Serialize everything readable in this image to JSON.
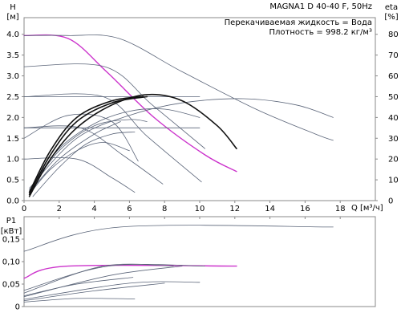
{
  "chart_data": [
    {
      "type": "line",
      "title": "MAGNA1 D 40-40 F, 50Hz",
      "info_lines": [
        "Перекачиваемая жидкость = Вода",
        "Плотность = 998.2 кг/м³"
      ],
      "ylabel_left_name": "H",
      "ylabel_left_unit": "[м]",
      "ylabel_right_name": "eta",
      "ylabel_right_unit": "[%]",
      "xlabel_name": "Q",
      "xlabel_unit": "[м³/ч]",
      "xlim": [
        0,
        20
      ],
      "ylim_left": [
        0,
        4.4
      ],
      "ylim_right": [
        0,
        88
      ],
      "x_ticks": [
        "0",
        "2",
        "4",
        "6",
        "8",
        "10",
        "12",
        "14",
        "16",
        "18"
      ],
      "y_left_ticks": [
        "0.0",
        "0.5",
        "1.0",
        "1.5",
        "2.0",
        "2.5",
        "3.0",
        "3.5",
        "4.0"
      ],
      "y_right_ticks": [
        "0",
        "10",
        "20",
        "30",
        "40",
        "50",
        "60",
        "70",
        "80"
      ],
      "grid": false,
      "series": [
        {
          "group": "head",
          "color": "#cc33cc",
          "emphasis": "selected",
          "x": [
            0,
            2.5,
            4.7,
            7.4,
            10.3,
            12.1
          ],
          "y": [
            3.97,
            3.9,
            3.1,
            2.0,
            1.1,
            0.7
          ]
        },
        {
          "group": "head",
          "color": "#5a6478",
          "x": [
            0,
            2.5,
            5.4,
            9.0,
            13.2,
            16.6,
            17.6
          ],
          "y": [
            3.97,
            3.97,
            3.9,
            3.1,
            2.2,
            1.6,
            1.45
          ]
        },
        {
          "group": "head",
          "color": "#5a6478",
          "x": [
            0,
            4.6,
            7.3,
            10.3
          ],
          "y": [
            3.22,
            3.22,
            2.3,
            1.25
          ]
        },
        {
          "group": "head",
          "color": "#5a6478",
          "x": [
            0,
            4.5,
            7.0,
            10.1
          ],
          "y": [
            2.5,
            2.5,
            1.55,
            0.45
          ]
        },
        {
          "group": "head",
          "color": "#5a6478",
          "x": [
            0,
            3.2,
            5.6,
            7.9
          ],
          "y": [
            1.75,
            1.75,
            1.1,
            0.4
          ]
        },
        {
          "group": "head",
          "color": "#5a6478",
          "x": [
            0,
            3.0,
            5.0,
            6.3
          ],
          "y": [
            1.0,
            1.0,
            0.55,
            0.2
          ]
        },
        {
          "group": "head",
          "color": "#5a6478",
          "x": [
            0,
            2.5,
            5.0,
            6.5
          ],
          "y": [
            1.5,
            2.05,
            1.9,
            0.95
          ]
        },
        {
          "group": "head",
          "color": "#5a6478",
          "x": [
            0,
            6.0,
            10.0
          ],
          "y": [
            1.75,
            1.75,
            1.75
          ]
        },
        {
          "group": "head",
          "color": "#5a6478",
          "x": [
            0,
            3.0,
            8.0,
            10.0
          ],
          "y": [
            2.5,
            2.5,
            2.5,
            2.5
          ]
        },
        {
          "group": "eta",
          "color": "#5a6478",
          "x": [
            0.3,
            3.0,
            6.0,
            9.0,
            12.5,
            15.5,
            17.6
          ],
          "y": [
            6,
            30,
            41,
            47,
            49,
            46,
            40
          ]
        },
        {
          "group": "eta",
          "color": "#5a6478",
          "x": [
            0.3,
            2.0,
            4.0,
            6.0,
            8.0,
            10.0
          ],
          "y": [
            5,
            25,
            37,
            43,
            44,
            40
          ]
        },
        {
          "group": "eta",
          "color": "#5a6478",
          "x": [
            0.3,
            2.0,
            4.0,
            6.0,
            7.0
          ],
          "y": [
            5,
            24,
            36,
            39,
            38
          ]
        },
        {
          "group": "eta",
          "color": "#5a6478",
          "x": [
            0.5,
            2.0,
            3.5,
            5.0,
            6.3
          ],
          "y": [
            2,
            16,
            27,
            32,
            33
          ]
        },
        {
          "group": "eta",
          "color": "#5a6478",
          "x": [
            0.3,
            2.0,
            4.0,
            5.5
          ],
          "y": [
            4,
            20,
            32,
            38
          ]
        },
        {
          "group": "eta",
          "color": "#5a6478",
          "x": [
            0.3,
            1.5,
            3.0,
            4.5,
            6.0
          ],
          "y": [
            3,
            15,
            24,
            28,
            24
          ]
        },
        {
          "group": "eta",
          "color": "#111111",
          "emphasis": "bold",
          "x": [
            0.3,
            1.5,
            3.0,
            5.0,
            7.0,
            9.0,
            11.0,
            12.1
          ],
          "y": [
            2,
            20,
            35,
            46,
            51,
            48,
            36,
            25
          ]
        },
        {
          "group": "eta",
          "color": "#111111",
          "emphasis": "bold",
          "x": [
            0.3,
            1.5,
            3.0,
            5.0,
            7.0
          ],
          "y": [
            3,
            22,
            38,
            47,
            50
          ]
        },
        {
          "group": "eta",
          "color": "#111111",
          "emphasis": "bold",
          "x": [
            0.3,
            1.5,
            3.0,
            5.0,
            6.8
          ],
          "y": [
            4,
            24,
            40,
            48,
            50
          ]
        }
      ]
    },
    {
      "type": "line",
      "ylabel_name": "P1",
      "ylabel_unit": "[кВт]",
      "xlim": [
        0,
        20
      ],
      "ylim": [
        0,
        0.2
      ],
      "y_ticks": [
        "0",
        "0,05",
        "0,10",
        "0,15"
      ],
      "grid": false,
      "series": [
        {
          "color": "#cc33cc",
          "emphasis": "selected",
          "x": [
            0,
            2.5,
            12.1
          ],
          "y": [
            0.063,
            0.09,
            0.09
          ]
        },
        {
          "color": "#5a6478",
          "x": [
            0,
            5.5,
            17.6
          ],
          "y": [
            0.123,
            0.177,
            0.177
          ]
        },
        {
          "color": "#5a6478",
          "x": [
            0,
            4.8,
            10.3
          ],
          "y": [
            0.036,
            0.09,
            0.09
          ]
        },
        {
          "color": "#5a6478",
          "x": [
            0,
            4.5,
            8.5
          ],
          "y": [
            0.03,
            0.09,
            0.09
          ]
        },
        {
          "color": "#5a6478",
          "x": [
            0,
            5.0,
            9.0
          ],
          "y": [
            0.022,
            0.07,
            0.09
          ]
        },
        {
          "color": "#5a6478",
          "x": [
            0,
            6.0,
            10.0
          ],
          "y": [
            0.016,
            0.052,
            0.054
          ]
        },
        {
          "color": "#5a6478",
          "x": [
            0,
            4.0,
            8.0
          ],
          "y": [
            0.013,
            0.035,
            0.052
          ]
        },
        {
          "color": "#5a6478",
          "x": [
            0,
            3.0,
            6.3
          ],
          "y": [
            0.01,
            0.018,
            0.017
          ]
        },
        {
          "color": "#5a6478",
          "x": [
            0,
            3.0,
            6.2
          ],
          "y": [
            0.024,
            0.05,
            0.065
          ]
        }
      ]
    }
  ]
}
